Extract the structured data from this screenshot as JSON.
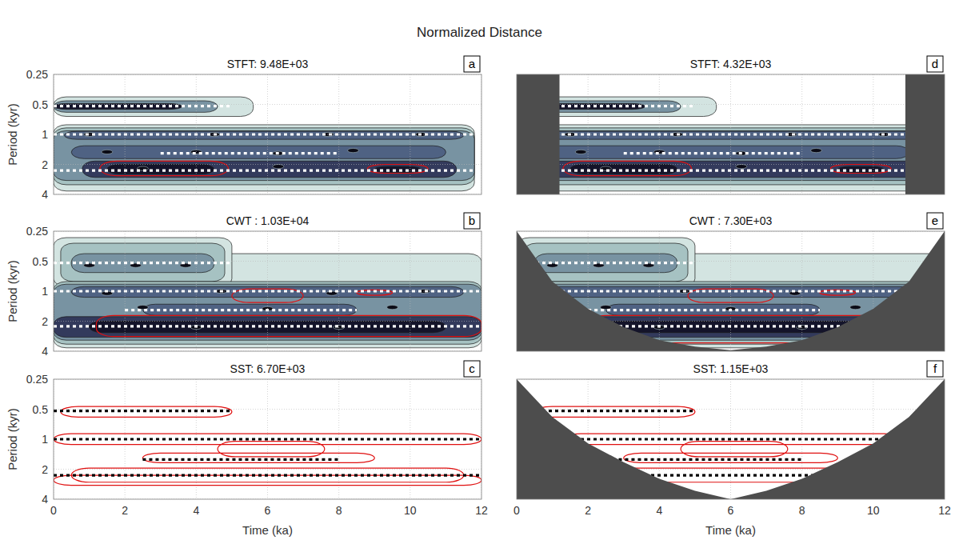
{
  "title": "Normalized Distance",
  "chart_data": [
    {
      "type": "contour",
      "title": "STFT: 9.48E+03",
      "panel": "a",
      "ylabel": "Period (kyr)",
      "xlim": [
        0,
        12
      ],
      "ylim": [
        0.25,
        4
      ],
      "xticks": [
        0,
        2,
        4,
        6,
        8,
        10,
        12
      ],
      "yticks": [
        0.25,
        0.5,
        1,
        2,
        4
      ],
      "log": "y",
      "grid": true,
      "tick_labels": "y",
      "color": "#ffffff",
      "line_style": "dotted",
      "lines": [
        {
          "x": [
            0,
            5
          ],
          "y": 0.52
        },
        {
          "x": [
            0,
            12
          ],
          "y": 1
        },
        {
          "x": [
            3,
            8
          ],
          "y": 1.55
        },
        {
          "x": [
            0,
            12
          ],
          "y": 2.3
        }
      ],
      "blobs": [
        {
          "x": [
            0,
            5.6
          ],
          "y": [
            0.42,
            0.66
          ],
          "level": 1
        },
        {
          "x": [
            0,
            4.6
          ],
          "y": [
            0.46,
            0.6
          ],
          "level": 3
        },
        {
          "x": [
            0,
            3.6
          ],
          "y": [
            0.49,
            0.56
          ],
          "level": 6
        },
        {
          "x": [
            0,
            11.8
          ],
          "y": [
            0.8,
            3.7
          ],
          "level": 1
        },
        {
          "x": [
            0,
            11.8
          ],
          "y": [
            0.86,
            3.2
          ],
          "level": 2
        },
        {
          "x": [
            0,
            11.8
          ],
          "y": [
            0.92,
            2.9
          ],
          "level": 3
        },
        {
          "x": [
            0.3,
            11.5
          ],
          "y": [
            0.93,
            1.12
          ],
          "level": 4
        },
        {
          "x": [
            0.5,
            11
          ],
          "y": [
            1.3,
            1.75
          ],
          "level": 4
        },
        {
          "x": [
            0.8,
            11.3
          ],
          "y": [
            1.85,
            2.7
          ],
          "level": 5
        },
        {
          "x": [
            1.5,
            4.5
          ],
          "y": [
            2.0,
            2.5
          ],
          "level": 6
        },
        {
          "x": [
            9,
            10.3
          ],
          "y": [
            2.1,
            2.4
          ],
          "level": 6
        }
      ],
      "peaks": [
        {
          "x": 1,
          "y": 1
        },
        {
          "x": 4.5,
          "y": 1
        },
        {
          "x": 7.7,
          "y": 1
        },
        {
          "x": 10.3,
          "y": 1
        },
        {
          "x": 1.5,
          "y": 1.5
        },
        {
          "x": 4,
          "y": 1.5
        },
        {
          "x": 6.3,
          "y": 1.55
        },
        {
          "x": 8.4,
          "y": 1.45
        },
        {
          "x": 6.3,
          "y": 2.1
        },
        {
          "x": 2.5,
          "y": 2.2
        }
      ],
      "significance": [
        {
          "x": [
            1.3,
            4.9
          ],
          "y": [
            1.85,
            2.6
          ]
        },
        {
          "x": [
            8.8,
            10.5
          ],
          "y": [
            2.0,
            2.45
          ]
        }
      ]
    },
    {
      "type": "contour",
      "title": "CWT : 1.03E+04",
      "panel": "b",
      "ylabel": "Period (kyr)",
      "xlim": [
        0,
        12
      ],
      "ylim": [
        0.25,
        4
      ],
      "xticks": [
        0,
        2,
        4,
        6,
        8,
        10,
        12
      ],
      "yticks": [
        0.25,
        0.5,
        1,
        2,
        4
      ],
      "log": "y",
      "grid": true,
      "tick_labels": "y",
      "color": "#ffffff",
      "line_style": "dotted",
      "lines": [
        {
          "x": [
            0,
            5
          ],
          "y": 0.52
        },
        {
          "x": [
            0,
            12
          ],
          "y": 1
        },
        {
          "x": [
            2,
            8.5
          ],
          "y": 1.55
        },
        {
          "x": [
            0,
            12
          ],
          "y": 2.25
        }
      ],
      "blobs": [
        {
          "x": [
            0,
            12
          ],
          "y": [
            0.42,
            3.7
          ],
          "level": 1
        },
        {
          "x": [
            0,
            5
          ],
          "y": [
            0.29,
            0.9
          ],
          "level": 1
        },
        {
          "x": [
            0.2,
            4.8
          ],
          "y": [
            0.33,
            0.8
          ],
          "level": 2
        },
        {
          "x": [
            0.5,
            4.5
          ],
          "y": [
            0.42,
            0.65
          ],
          "level": 3
        },
        {
          "x": [
            0,
            12
          ],
          "y": [
            0.8,
            3.4
          ],
          "level": 2
        },
        {
          "x": [
            0,
            12
          ],
          "y": [
            0.85,
            3.1
          ],
          "level": 3
        },
        {
          "x": [
            0.5,
            11.5
          ],
          "y": [
            0.9,
            1.15
          ],
          "level": 4
        },
        {
          "x": [
            2.5,
            8.5
          ],
          "y": [
            1.35,
            1.75
          ],
          "level": 4
        },
        {
          "x": [
            0,
            12
          ],
          "y": [
            1.8,
            2.9
          ],
          "level": 5
        },
        {
          "x": [
            1,
            11
          ],
          "y": [
            2,
            2.6
          ],
          "level": 6
        }
      ],
      "peaks": [
        {
          "x": 1,
          "y": 0.55
        },
        {
          "x": 2.3,
          "y": 0.55
        },
        {
          "x": 3.7,
          "y": 0.55
        },
        {
          "x": 1.5,
          "y": 1.05
        },
        {
          "x": 4.7,
          "y": 1.0
        },
        {
          "x": 7.8,
          "y": 1.05
        },
        {
          "x": 10.4,
          "y": 1.0
        },
        {
          "x": 2.5,
          "y": 1.45
        },
        {
          "x": 6,
          "y": 1.5
        },
        {
          "x": 9.5,
          "y": 1.45
        },
        {
          "x": 4,
          "y": 2.3
        },
        {
          "x": 8,
          "y": 2.3
        }
      ],
      "significance": [
        {
          "x": [
            1.2,
            12
          ],
          "y": [
            1.75,
            2.85
          ]
        },
        {
          "x": [
            5,
            7
          ],
          "y": [
            0.95,
            1.3
          ]
        },
        {
          "x": [
            8.5,
            9.5
          ],
          "y": [
            0.97,
            1.1
          ]
        }
      ]
    },
    {
      "type": "contour",
      "title": "SST: 6.70E+03",
      "panel": "c",
      "ylabel": "Period (kyr)",
      "xlabel": "Time (ka)",
      "xlim": [
        0,
        12
      ],
      "ylim": [
        0.25,
        4
      ],
      "xticks": [
        0,
        2,
        4,
        6,
        8,
        10,
        12
      ],
      "yticks": [
        0.25,
        0.5,
        1,
        2,
        4
      ],
      "log": "y",
      "grid": true,
      "tick_labels": true,
      "color": "#000000",
      "line_style": "dotted",
      "lines": [
        {
          "x": [
            0,
            5
          ],
          "y": 0.52
        },
        {
          "x": [
            0,
            12
          ],
          "y": 1
        },
        {
          "x": [
            2.5,
            8
          ],
          "y": 1.6
        },
        {
          "x": [
            0,
            12
          ],
          "y": 2.3
        }
      ],
      "blobs": [],
      "peaks": [],
      "significance": [
        {
          "x": [
            0.2,
            5
          ],
          "y": [
            0.47,
            0.6
          ]
        },
        {
          "x": [
            0,
            12
          ],
          "y": [
            0.88,
            1.13
          ]
        },
        {
          "x": [
            2.5,
            9
          ],
          "y": [
            1.38,
            1.72
          ]
        },
        {
          "x": [
            4.6,
            7.6
          ],
          "y": [
            1.05,
            1.5
          ]
        },
        {
          "x": [
            0.5,
            11.5
          ],
          "y": [
            1.95,
            2.7
          ]
        },
        {
          "x": [
            0,
            12
          ],
          "y": [
            2.3,
            2.9
          ]
        }
      ]
    },
    {
      "type": "contour",
      "title": "STFT: 4.32E+03",
      "panel": "d",
      "xlim": [
        0,
        12
      ],
      "ylim": [
        0.25,
        4
      ],
      "xticks": [
        0,
        2,
        4,
        6,
        8,
        10,
        12
      ],
      "yticks": [
        0.25,
        0.5,
        1,
        2,
        4
      ],
      "log": "y",
      "grid": true,
      "tick_labels": false,
      "color": "#ffffff",
      "line_style": "dotted",
      "lines": [
        {
          "x": [
            0,
            5
          ],
          "y": 0.52
        },
        {
          "x": [
            0,
            12
          ],
          "y": 1
        },
        {
          "x": [
            3,
            8
          ],
          "y": 1.55
        },
        {
          "x": [
            0,
            12
          ],
          "y": 2.3
        }
      ],
      "blobs": [
        {
          "x": [
            0,
            5.6
          ],
          "y": [
            0.42,
            0.66
          ],
          "level": 1
        },
        {
          "x": [
            0,
            4.6
          ],
          "y": [
            0.46,
            0.6
          ],
          "level": 3
        },
        {
          "x": [
            0,
            3.6
          ],
          "y": [
            0.49,
            0.56
          ],
          "level": 6
        },
        {
          "x": [
            0,
            11.8
          ],
          "y": [
            0.8,
            3.7
          ],
          "level": 1
        },
        {
          "x": [
            0,
            11.8
          ],
          "y": [
            0.86,
            3.2
          ],
          "level": 2
        },
        {
          "x": [
            0,
            11.8
          ],
          "y": [
            0.92,
            2.9
          ],
          "level": 3
        },
        {
          "x": [
            0.3,
            11.5
          ],
          "y": [
            0.93,
            1.12
          ],
          "level": 4
        },
        {
          "x": [
            0.5,
            11
          ],
          "y": [
            1.3,
            1.75
          ],
          "level": 4
        },
        {
          "x": [
            0.8,
            11.3
          ],
          "y": [
            1.85,
            2.7
          ],
          "level": 5
        },
        {
          "x": [
            1.5,
            4.5
          ],
          "y": [
            2.0,
            2.5
          ],
          "level": 6
        },
        {
          "x": [
            9,
            10.3
          ],
          "y": [
            2.1,
            2.4
          ],
          "level": 6
        }
      ],
      "peaks": [
        {
          "x": 1.5,
          "y": 1
        },
        {
          "x": 4.5,
          "y": 1
        },
        {
          "x": 7.7,
          "y": 1
        },
        {
          "x": 10.3,
          "y": 1
        },
        {
          "x": 1.8,
          "y": 1.5
        },
        {
          "x": 4,
          "y": 1.5
        },
        {
          "x": 6.3,
          "y": 1.55
        },
        {
          "x": 8.4,
          "y": 1.45
        },
        {
          "x": 6.3,
          "y": 2.1
        },
        {
          "x": 2.5,
          "y": 2.2
        }
      ],
      "significance": [
        {
          "x": [
            1.3,
            4.9
          ],
          "y": [
            1.85,
            2.6
          ]
        },
        {
          "x": [
            8.8,
            10.5
          ],
          "y": [
            2.0,
            2.45
          ]
        }
      ],
      "coi_edges": [
        1.2,
        10.9
      ]
    },
    {
      "type": "contour",
      "title": "CWT : 7.30E+03",
      "panel": "e",
      "xlim": [
        0,
        12
      ],
      "ylim": [
        0.25,
        4
      ],
      "xticks": [
        0,
        2,
        4,
        6,
        8,
        10,
        12
      ],
      "yticks": [
        0.25,
        0.5,
        1,
        2,
        4
      ],
      "log": "y",
      "grid": true,
      "tick_labels": false,
      "color": "#ffffff",
      "line_style": "dotted",
      "lines": [
        {
          "x": [
            0,
            5
          ],
          "y": 0.52
        },
        {
          "x": [
            0,
            12
          ],
          "y": 1
        },
        {
          "x": [
            2,
            8.5
          ],
          "y": 1.55
        },
        {
          "x": [
            0,
            12
          ],
          "y": 2.25
        }
      ],
      "blobs": [
        {
          "x": [
            0,
            12
          ],
          "y": [
            0.42,
            3.7
          ],
          "level": 1
        },
        {
          "x": [
            0,
            5
          ],
          "y": [
            0.29,
            0.9
          ],
          "level": 1
        },
        {
          "x": [
            0.2,
            4.8
          ],
          "y": [
            0.33,
            0.8
          ],
          "level": 2
        },
        {
          "x": [
            0.5,
            4.5
          ],
          "y": [
            0.42,
            0.65
          ],
          "level": 3
        },
        {
          "x": [
            0,
            12
          ],
          "y": [
            0.8,
            3.4
          ],
          "level": 2
        },
        {
          "x": [
            0,
            12
          ],
          "y": [
            0.85,
            3.1
          ],
          "level": 3
        },
        {
          "x": [
            0.5,
            11.5
          ],
          "y": [
            0.9,
            1.15
          ],
          "level": 4
        },
        {
          "x": [
            2.5,
            8.5
          ],
          "y": [
            1.35,
            1.75
          ],
          "level": 4
        },
        {
          "x": [
            0,
            12
          ],
          "y": [
            1.8,
            2.9
          ],
          "level": 5
        },
        {
          "x": [
            1,
            11
          ],
          "y": [
            2,
            2.6
          ],
          "level": 6
        }
      ],
      "peaks": [
        {
          "x": 1,
          "y": 0.55
        },
        {
          "x": 2.3,
          "y": 0.55
        },
        {
          "x": 3.7,
          "y": 0.55
        },
        {
          "x": 4.7,
          "y": 1.0
        },
        {
          "x": 7.8,
          "y": 1.05
        },
        {
          "x": 2.5,
          "y": 1.45
        },
        {
          "x": 6,
          "y": 1.5
        },
        {
          "x": 9.5,
          "y": 1.45
        },
        {
          "x": 4,
          "y": 2.3
        },
        {
          "x": 8,
          "y": 2.3
        }
      ],
      "significance": [
        {
          "x": [
            2,
            10.5
          ],
          "y": [
            1.75,
            3.3
          ]
        },
        {
          "x": [
            4.8,
            7.2
          ],
          "y": [
            0.95,
            1.3
          ]
        },
        {
          "x": [
            8.5,
            9.5
          ],
          "y": [
            0.97,
            1.1
          ]
        }
      ],
      "coi": {
        "x": [
          0,
          1,
          2,
          3,
          4,
          5,
          6,
          7,
          8,
          9,
          10,
          11,
          12
        ],
        "y": [
          0.25,
          0.8,
          1.5,
          2.3,
          3.1,
          3.6,
          3.9,
          3.6,
          3.1,
          2.3,
          1.5,
          0.8,
          0.25
        ]
      }
    },
    {
      "type": "contour",
      "title": "SST: 1.15E+03",
      "panel": "f",
      "xlabel": "Time (ka)",
      "xlim": [
        0,
        12
      ],
      "ylim": [
        0.25,
        4
      ],
      "xticks": [
        0,
        2,
        4,
        6,
        8,
        10,
        12
      ],
      "yticks": [
        0.25,
        0.5,
        1,
        2,
        4
      ],
      "log": "y",
      "grid": true,
      "tick_labels": "x",
      "color": "#000000",
      "line_style": "dotted",
      "lines": [
        {
          "x": [
            0,
            5
          ],
          "y": 0.52
        },
        {
          "x": [
            0,
            12
          ],
          "y": 1
        },
        {
          "x": [
            2.5,
            8
          ],
          "y": 1.6
        },
        {
          "x": [
            0,
            12
          ],
          "y": 2.3
        }
      ],
      "blobs": [],
      "peaks": [],
      "significance": [
        {
          "x": [
            0.5,
            5
          ],
          "y": [
            0.47,
            0.6
          ]
        },
        {
          "x": [
            1.3,
            10.8
          ],
          "y": [
            0.88,
            1.13
          ]
        },
        {
          "x": [
            3,
            9
          ],
          "y": [
            1.38,
            1.72
          ]
        },
        {
          "x": [
            4.6,
            7.6
          ],
          "y": [
            1.05,
            1.5
          ]
        },
        {
          "x": [
            2.5,
            9.8
          ],
          "y": [
            1.95,
            2.7
          ]
        }
      ],
      "coi": {
        "x": [
          0,
          1,
          2,
          3,
          4,
          5,
          6,
          7,
          8,
          9,
          10,
          11,
          12
        ],
        "y": [
          0.25,
          0.6,
          1.1,
          1.7,
          2.5,
          3.3,
          4,
          3.3,
          2.5,
          1.7,
          1.1,
          0.6,
          0.25
        ]
      }
    }
  ]
}
